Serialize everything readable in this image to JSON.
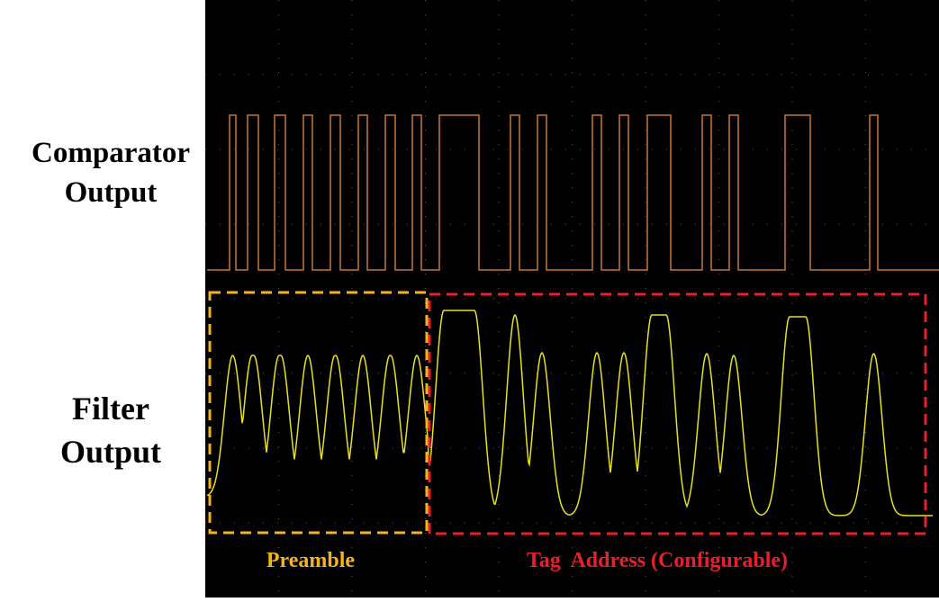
{
  "signals": [
    {
      "label_lines": [
        "Comparator",
        "Output"
      ]
    },
    {
      "label_lines": [
        "Filter",
        "Output"
      ]
    }
  ],
  "regions": [
    {
      "label": "Preamble"
    },
    {
      "label": "Tag  Address (Configurable)"
    }
  ]
}
